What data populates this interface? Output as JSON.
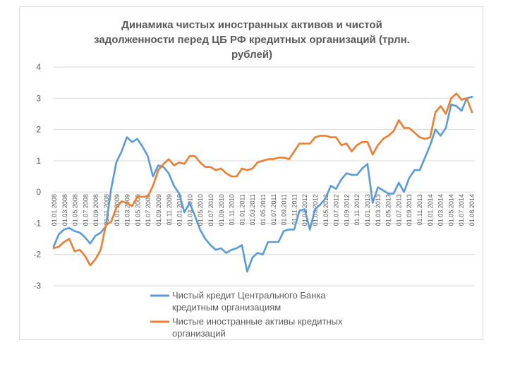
{
  "chart_data": {
    "type": "line",
    "title_lines": [
      "Динамика чистых иностранных активов и чистой",
      "задолженности перед ЦБ РФ кредитных организаций (трлн.",
      "рублей)"
    ],
    "ylim": [
      -3,
      4
    ],
    "yticks": [
      4,
      3,
      2,
      1,
      0,
      -1,
      -2,
      -3
    ],
    "grid": true,
    "legend_position": "bottom",
    "xtick_labels": [
      "01.01.2008",
      "01.03.2008",
      "01.05.2008",
      "01.07.2008",
      "01.09.2008",
      "01.11.2008",
      "01.01.2009",
      "01.03.2009",
      "01.05.2009",
      "01.07.2009",
      "01.09.2009",
      "01.11.2009",
      "01.01.2010",
      "01.03.2010",
      "01.05.2010",
      "01.07.2010",
      "01.09.2010",
      "01.11.2010",
      "01.01.2011",
      "01.03.2011",
      "01.05.2011",
      "01.07.2011",
      "01.09.2011",
      "01.11.2011",
      "01.01.2012",
      "01.03.2012",
      "01.05.2012",
      "01.07.2012",
      "01.09.2012",
      "01.11.2012",
      "01.01.2013",
      "01.03.2013",
      "01.05.2013",
      "01.07.2013",
      "01.09.2013",
      "01.11.2013",
      "01.01.2014",
      "01.03.2014",
      "01.05.2014",
      "01.07.2014",
      "01.08.2014"
    ],
    "series": [
      {
        "name_lines": [
          "Чистый кредит Центрального Банка",
          "кредитным организациям"
        ],
        "color": "#5b9bd5",
        "values": [
          -1.75,
          -1.35,
          -1.2,
          -1.15,
          -1.25,
          -1.3,
          -1.45,
          -1.65,
          -1.4,
          -1.3,
          -1.1,
          0.1,
          0.95,
          1.3,
          1.75,
          1.6,
          1.7,
          1.45,
          1.15,
          0.5,
          0.85,
          0.8,
          0.6,
          0.2,
          -0.05,
          -0.65,
          -0.35,
          -0.75,
          -1.2,
          -1.5,
          -1.7,
          -1.85,
          -1.8,
          -1.95,
          -1.85,
          -1.8,
          -1.7,
          -2.55,
          -2.1,
          -1.95,
          -2.0,
          -1.6,
          -1.6,
          -1.6,
          -1.25,
          -1.2,
          -1.2,
          -0.6,
          -0.55,
          -1.2,
          -0.55,
          -0.4,
          -0.2,
          0.2,
          0.1,
          0.4,
          0.6,
          0.55,
          0.55,
          0.75,
          0.9,
          -0.35,
          0.15,
          0.05,
          -0.05,
          -0.05,
          0.3,
          0.0,
          0.45,
          0.7,
          0.7,
          1.1,
          1.5,
          2.0,
          1.8,
          2.05,
          2.8,
          2.75,
          2.6,
          3.0,
          3.05
        ]
      },
      {
        "name_lines": [
          "Чистые иностранные активы кредитных",
          "организаций"
        ],
        "color": "#ed7d31",
        "values": [
          -1.8,
          -1.75,
          -1.6,
          -1.5,
          -1.9,
          -1.85,
          -2.05,
          -2.35,
          -2.15,
          -1.85,
          -1.05,
          -0.95,
          -0.5,
          -0.3,
          -0.35,
          -0.45,
          -0.15,
          -0.15,
          -0.15,
          0.2,
          0.7,
          0.9,
          1.05,
          0.85,
          0.95,
          0.9,
          1.15,
          1.15,
          0.95,
          0.8,
          0.8,
          0.7,
          0.75,
          0.6,
          0.5,
          0.5,
          0.75,
          0.7,
          0.75,
          0.95,
          1.0,
          1.05,
          1.05,
          1.1,
          1.1,
          1.05,
          1.3,
          1.55,
          1.55,
          1.55,
          1.75,
          1.8,
          1.8,
          1.75,
          1.75,
          1.5,
          1.55,
          1.3,
          1.5,
          1.6,
          1.6,
          1.2,
          1.5,
          1.7,
          1.8,
          1.95,
          2.3,
          2.05,
          2.05,
          1.9,
          1.75,
          1.7,
          1.75,
          2.55,
          2.75,
          2.5,
          3.0,
          3.15,
          2.95,
          3.0,
          2.55
        ]
      }
    ]
  }
}
